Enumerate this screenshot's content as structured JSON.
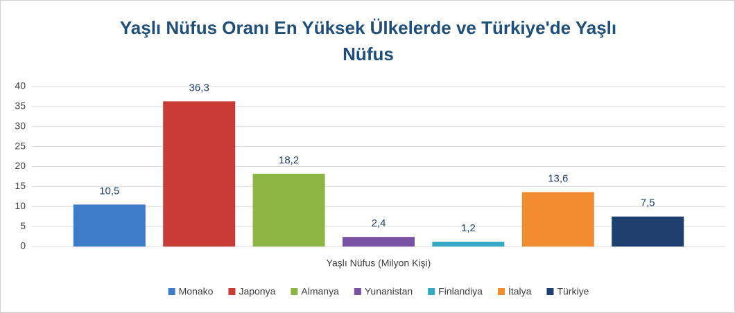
{
  "chart_data": {
    "type": "bar",
    "title": "Yaşlı Nüfus Oranı En Yüksek Ülkelerde ve Türkiye'de Yaşlı Nüfus",
    "categories": [
      "Yaşlı Nüfus (Milyon Kişi)"
    ],
    "series": [
      {
        "name": "Monako",
        "color": "#3d7cc9",
        "values": [
          10.5
        ],
        "value_labels": [
          "10,5"
        ]
      },
      {
        "name": "Japonya",
        "color": "#c93b36",
        "values": [
          36.3
        ],
        "value_labels": [
          "36,3"
        ]
      },
      {
        "name": "Almanya",
        "color": "#8db543",
        "values": [
          18.2
        ],
        "value_labels": [
          "18,2"
        ]
      },
      {
        "name": "Yunanistan",
        "color": "#7a52a3",
        "values": [
          2.4
        ],
        "value_labels": [
          "2,4"
        ]
      },
      {
        "name": "Finlandiya",
        "color": "#35a8c4",
        "values": [
          1.2
        ],
        "value_labels": [
          "1,2"
        ]
      },
      {
        "name": "İtalya",
        "color": "#f18c2e",
        "values": [
          13.6
        ],
        "value_labels": [
          "13,6"
        ]
      },
      {
        "name": "Türkiye",
        "color": "#1f3f6e",
        "values": [
          7.5
        ],
        "value_labels": [
          "7,5"
        ]
      }
    ],
    "ylim": [
      0,
      40
    ],
    "yticks": [
      0,
      5,
      10,
      15,
      20,
      25,
      30,
      35,
      40
    ],
    "grid": true,
    "legend": "bottom"
  }
}
